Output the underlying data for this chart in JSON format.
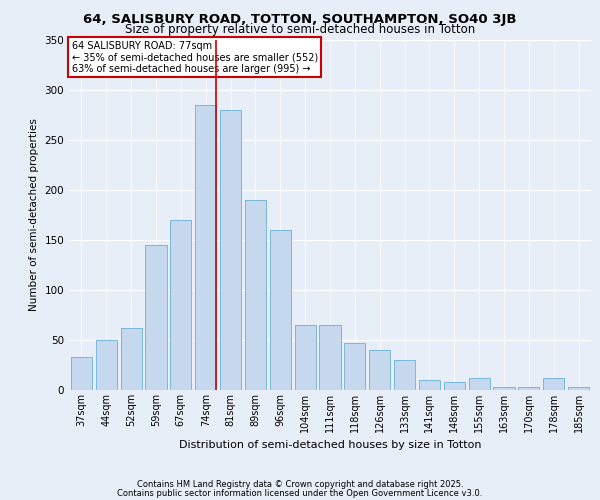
{
  "title1": "64, SALISBURY ROAD, TOTTON, SOUTHAMPTON, SO40 3JB",
  "title2": "Size of property relative to semi-detached houses in Totton",
  "xlabel": "Distribution of semi-detached houses by size in Totton",
  "ylabel": "Number of semi-detached properties",
  "categories": [
    "37sqm",
    "44sqm",
    "52sqm",
    "59sqm",
    "67sqm",
    "74sqm",
    "81sqm",
    "89sqm",
    "96sqm",
    "104sqm",
    "111sqm",
    "118sqm",
    "126sqm",
    "133sqm",
    "141sqm",
    "148sqm",
    "155sqm",
    "163sqm",
    "170sqm",
    "178sqm",
    "185sqm"
  ],
  "values": [
    33,
    50,
    62,
    145,
    170,
    285,
    280,
    190,
    160,
    65,
    65,
    47,
    40,
    30,
    10,
    8,
    12,
    3,
    3,
    12,
    3
  ],
  "bar_color": "#c5d8ed",
  "bar_edge_color": "#6aafd4",
  "highlight_index": 5,
  "highlight_line_color": "#cc0000",
  "annotation_title": "64 SALISBURY ROAD: 77sqm",
  "annotation_line1": "← 35% of semi-detached houses are smaller (552)",
  "annotation_line2": "63% of semi-detached houses are larger (995) →",
  "annotation_box_color": "#ffffff",
  "annotation_border_color": "#cc0000",
  "footer1": "Contains HM Land Registry data © Crown copyright and database right 2025.",
  "footer2": "Contains public sector information licensed under the Open Government Licence v3.0.",
  "background_color": "#e8eef8",
  "plot_bg_color": "#e8eef8",
  "ylim": [
    0,
    350
  ],
  "yticks": [
    0,
    50,
    100,
    150,
    200,
    250,
    300,
    350
  ]
}
